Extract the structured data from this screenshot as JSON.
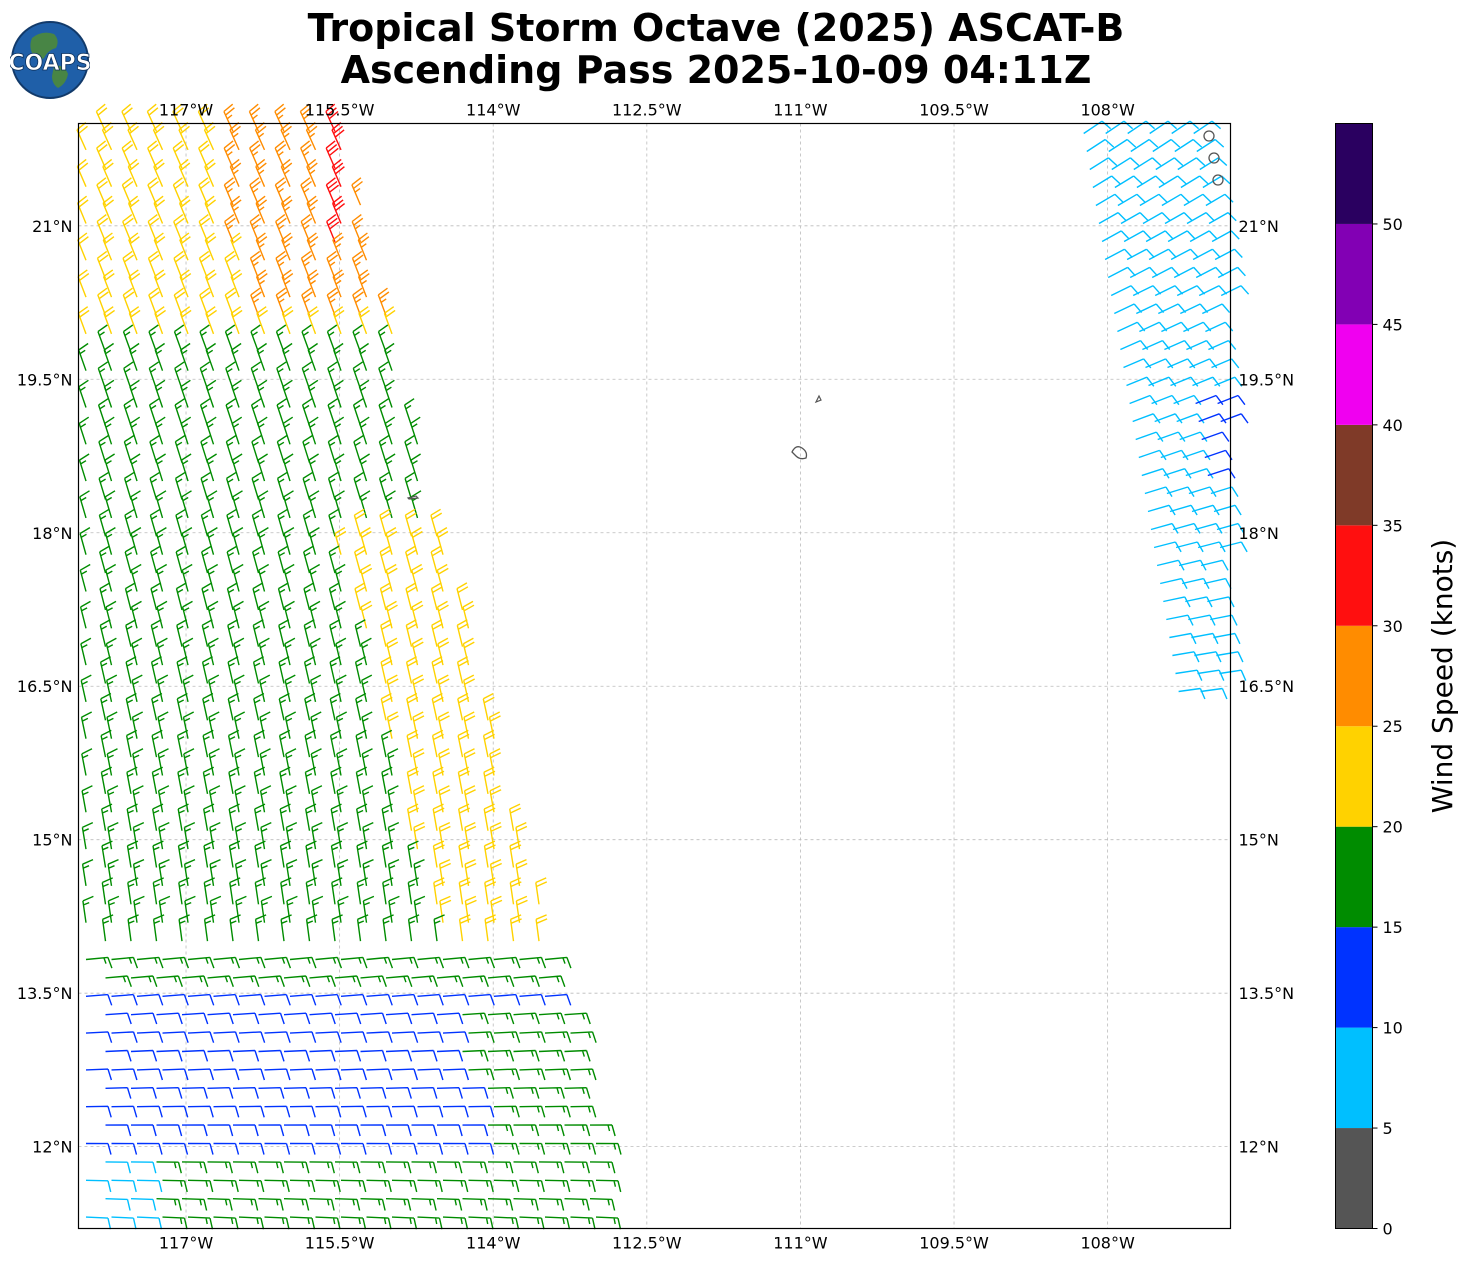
{
  "title": {
    "line1": "Tropical Storm Octave (2025) ASCAT-B",
    "line2": "Ascending Pass 2025-10-09 04:11Z"
  },
  "logo": {
    "text": "COAPS",
    "icon": "globe-icon"
  },
  "axes": {
    "lon_labels": [
      "117°W",
      "115.5°W",
      "114°W",
      "112.5°W",
      "111°W",
      "109.5°W",
      "108°W"
    ],
    "lon_values": [
      -117,
      -115.5,
      -114,
      -112.5,
      -111,
      -109.5,
      -108
    ],
    "lat_labels": [
      "21°N",
      "19.5°N",
      "18°N",
      "16.5°N",
      "15°N",
      "13.5°N",
      "12°N"
    ],
    "lat_values": [
      21,
      19.5,
      18,
      16.5,
      15,
      13.5,
      12
    ],
    "lon_range": [
      -118.05,
      -106.8
    ],
    "lat_range": [
      11.2,
      22.0
    ],
    "grid": true
  },
  "colorbar": {
    "label": "Wind Speed (knots)",
    "tick_labels": [
      "0",
      "5",
      "10",
      "15",
      "20",
      "25",
      "30",
      "35",
      "40",
      "45",
      "50"
    ],
    "bins": [
      {
        "min": 0,
        "max": 5,
        "color": "#555555"
      },
      {
        "min": 5,
        "max": 10,
        "color": "#00bfff"
      },
      {
        "min": 10,
        "max": 15,
        "color": "#0033ff"
      },
      {
        "min": 15,
        "max": 20,
        "color": "#008c00"
      },
      {
        "min": 20,
        "max": 25,
        "color": "#ffd200"
      },
      {
        "min": 25,
        "max": 30,
        "color": "#ff8c00"
      },
      {
        "min": 30,
        "max": 35,
        "color": "#ff0f0f"
      },
      {
        "min": 35,
        "max": 40,
        "color": "#7f3a28"
      },
      {
        "min": 40,
        "max": 45,
        "color": "#f000f0"
      },
      {
        "min": 45,
        "max": 50,
        "color": "#8200b4"
      },
      {
        "min": 50,
        "max": 55,
        "color": "#2a0060"
      }
    ]
  }
}
